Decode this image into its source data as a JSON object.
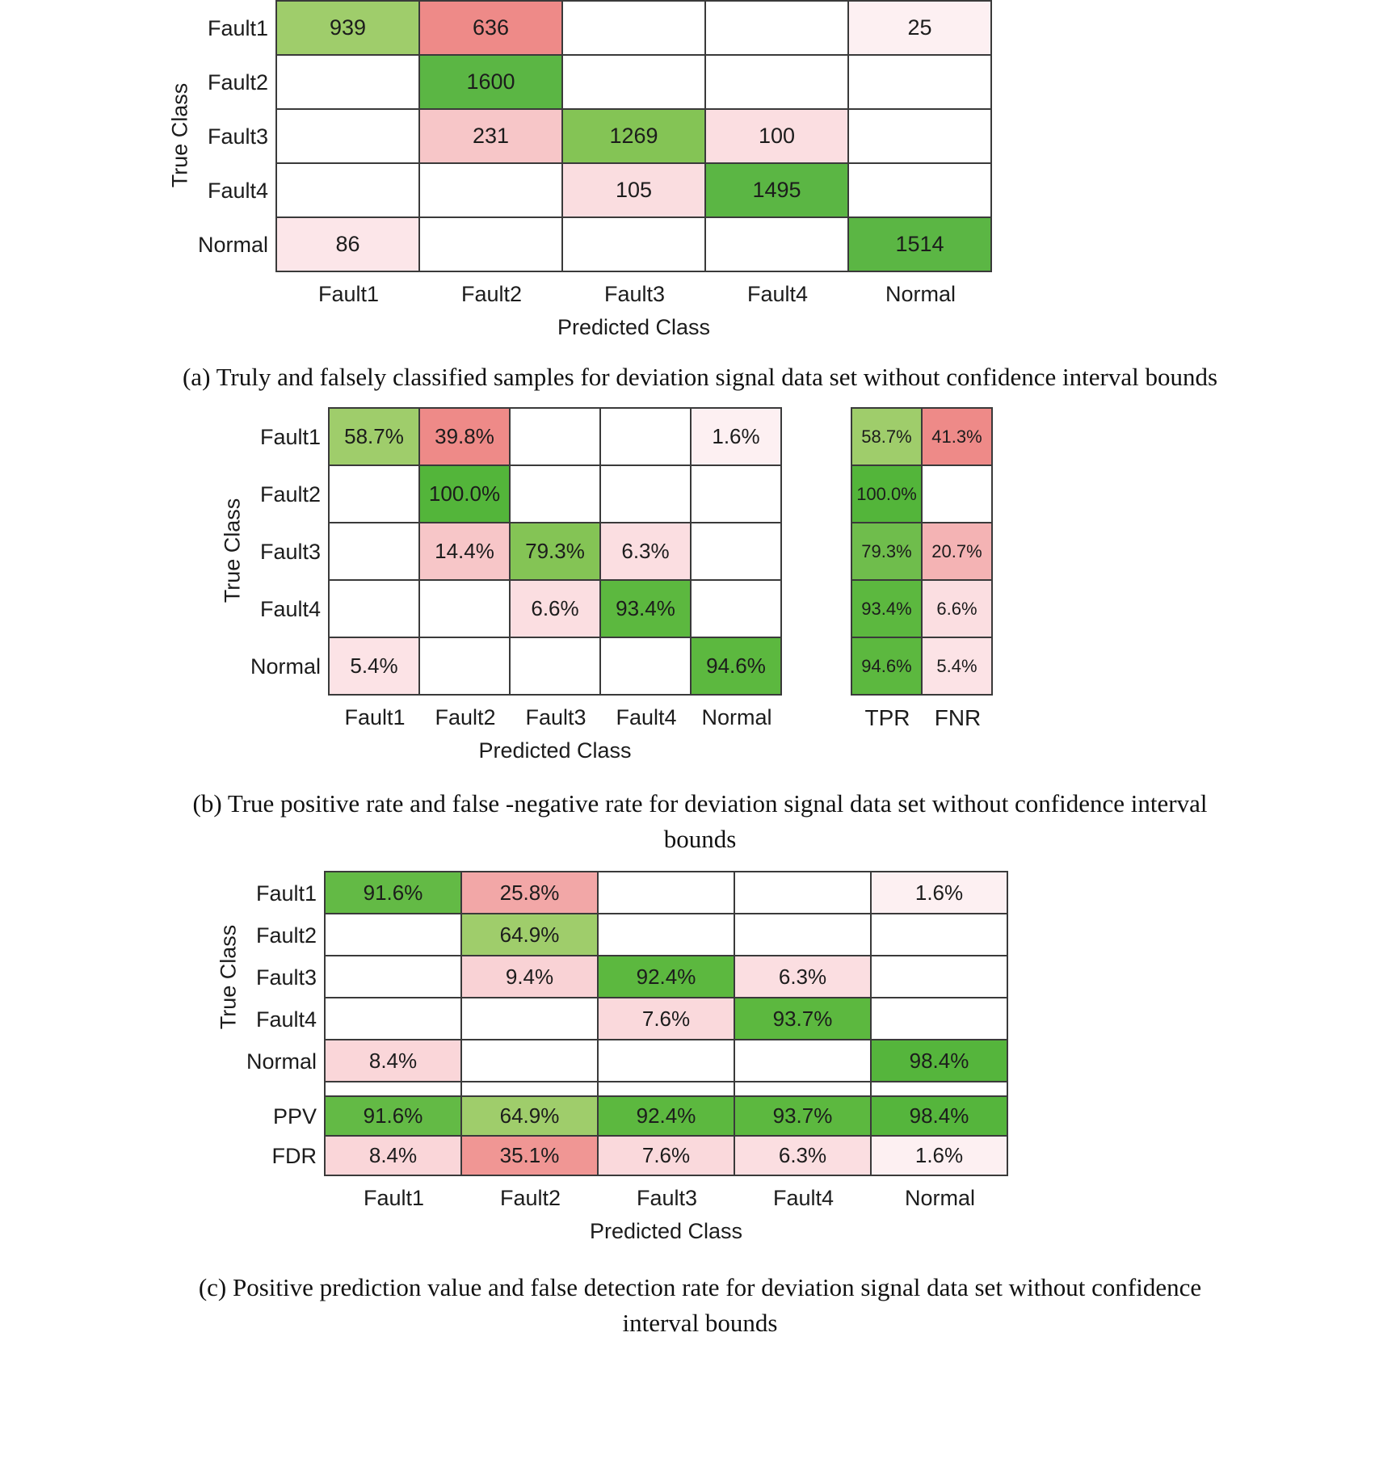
{
  "page": {
    "background": "#ffffff"
  },
  "colors": {
    "grid_line": "#3a3a3a",
    "strong_green": "#5bb644",
    "light_green": "#9fcd6b",
    "mid_green": "#7fc352",
    "strong_red": "#ee8a88",
    "light_pink": "#fce3e6"
  },
  "chart_data": [
    {
      "type": "heatmap",
      "name": "confusion-matrix-counts",
      "caption_lines": [
        "(a) Truly and falsely classified samples for deviation signal data set without confidence interval bounds"
      ],
      "xlabel": "Predicted Class",
      "ylabel": "True Class",
      "x_categories": [
        "Fault1",
        "Fault2",
        "Fault3",
        "Fault4",
        "Normal"
      ],
      "y_categories": [
        "Fault1",
        "Fault2",
        "Fault3",
        "Fault4",
        "Normal"
      ],
      "cells": [
        [
          {
            "value": "939",
            "color": "#9fcd6b"
          },
          {
            "value": "636",
            "color": "#ee8a88"
          },
          null,
          null,
          {
            "value": "25",
            "color": "#fdf0f2"
          }
        ],
        [
          null,
          {
            "value": "1600",
            "color": "#5bb644"
          },
          null,
          null,
          null
        ],
        [
          null,
          {
            "value": "231",
            "color": "#f7c6c8"
          },
          {
            "value": "1269",
            "color": "#84c455"
          },
          {
            "value": "100",
            "color": "#fbdee1"
          },
          null
        ],
        [
          null,
          null,
          {
            "value": "105",
            "color": "#fadde0"
          },
          {
            "value": "1495",
            "color": "#5bb644"
          },
          null
        ],
        [
          {
            "value": "86",
            "color": "#fce6e9"
          },
          null,
          null,
          null,
          {
            "value": "1514",
            "color": "#5bb644"
          }
        ]
      ]
    },
    {
      "type": "heatmap",
      "name": "confusion-matrix-tpr-fnr",
      "caption_lines": [
        "(b) True positive rate and false -negative rate for deviation signal data set without confidence interval",
        "bounds"
      ],
      "xlabel": "Predicted Class",
      "ylabel": "True Class",
      "x_categories": [
        "Fault1",
        "Fault2",
        "Fault3",
        "Fault4",
        "Normal"
      ],
      "y_categories": [
        "Fault1",
        "Fault2",
        "Fault3",
        "Fault4",
        "Normal"
      ],
      "cells": [
        [
          {
            "value": "58.7%",
            "color": "#9fcd6b"
          },
          {
            "value": "39.8%",
            "color": "#ee8a88"
          },
          null,
          null,
          {
            "value": "1.6%",
            "color": "#fdf0f2"
          }
        ],
        [
          null,
          {
            "value": "100.0%",
            "color": "#53b53a"
          },
          null,
          null,
          null
        ],
        [
          null,
          {
            "value": "14.4%",
            "color": "#f7c6c8"
          },
          {
            "value": "79.3%",
            "color": "#84c455"
          },
          {
            "value": "6.3%",
            "color": "#fbdee1"
          },
          null
        ],
        [
          null,
          null,
          {
            "value": "6.6%",
            "color": "#fbdee1"
          },
          {
            "value": "93.4%",
            "color": "#5cb83f"
          },
          null
        ],
        [
          {
            "value": "5.4%",
            "color": "#fce3e6"
          },
          null,
          null,
          null,
          {
            "value": "94.6%",
            "color": "#5cb83f"
          }
        ]
      ],
      "extra_columns": {
        "labels": [
          "TPR",
          "FNR"
        ],
        "rows": [
          [
            {
              "value": "58.7%",
              "color": "#9fcd6b"
            },
            {
              "value": "41.3%",
              "color": "#ee8a88"
            }
          ],
          [
            {
              "value": "100.0%",
              "color": "#53b53a"
            },
            null
          ],
          [
            {
              "value": "79.3%",
              "color": "#6fbd4c"
            },
            {
              "value": "20.7%",
              "color": "#f4b3b4"
            }
          ],
          [
            {
              "value": "93.4%",
              "color": "#5cb83f"
            },
            {
              "value": "6.6%",
              "color": "#fbdee1"
            }
          ],
          [
            {
              "value": "94.6%",
              "color": "#5cb83f"
            },
            {
              "value": "5.4%",
              "color": "#fce3e6"
            }
          ]
        ]
      }
    },
    {
      "type": "heatmap",
      "name": "confusion-matrix-ppv-fdr",
      "caption_lines": [
        "(c) Positive prediction value and false detection rate for deviation signal data set without confidence",
        "interval bounds"
      ],
      "xlabel": "Predicted Class",
      "ylabel": "True Class",
      "x_categories": [
        "Fault1",
        "Fault2",
        "Fault3",
        "Fault4",
        "Normal"
      ],
      "y_categories": [
        "Fault1",
        "Fault2",
        "Fault3",
        "Fault4",
        "Normal"
      ],
      "cells": [
        [
          {
            "value": "91.6%",
            "color": "#63ba45"
          },
          {
            "value": "25.8%",
            "color": "#f2a7a7"
          },
          null,
          null,
          {
            "value": "1.6%",
            "color": "#fdf0f2"
          }
        ],
        [
          null,
          {
            "value": "64.9%",
            "color": "#9fcd6b"
          },
          null,
          null,
          null
        ],
        [
          null,
          {
            "value": "9.4%",
            "color": "#f9d2d5"
          },
          {
            "value": "92.4%",
            "color": "#5cb83f"
          },
          {
            "value": "6.3%",
            "color": "#fbdee1"
          },
          null
        ],
        [
          null,
          null,
          {
            "value": "7.6%",
            "color": "#fad9dc"
          },
          {
            "value": "93.7%",
            "color": "#5cb83f"
          },
          null
        ],
        [
          {
            "value": "8.4%",
            "color": "#fad6d9"
          },
          null,
          null,
          null,
          {
            "value": "98.4%",
            "color": "#55b53c"
          }
        ]
      ],
      "extra_rows": {
        "labels": [
          "PPV",
          "FDR"
        ],
        "rows": [
          [
            {
              "value": "91.6%",
              "color": "#63ba45"
            },
            {
              "value": "64.9%",
              "color": "#9fcd6b"
            },
            {
              "value": "92.4%",
              "color": "#5cb83f"
            },
            {
              "value": "93.7%",
              "color": "#5cb83f"
            },
            {
              "value": "98.4%",
              "color": "#55b53c"
            }
          ],
          [
            {
              "value": "8.4%",
              "color": "#fad6d9"
            },
            {
              "value": "35.1%",
              "color": "#f09694"
            },
            {
              "value": "7.6%",
              "color": "#fad9dc"
            },
            {
              "value": "6.3%",
              "color": "#fbdee1"
            },
            {
              "value": "1.6%",
              "color": "#fdf0f2"
            }
          ]
        ]
      }
    }
  ]
}
